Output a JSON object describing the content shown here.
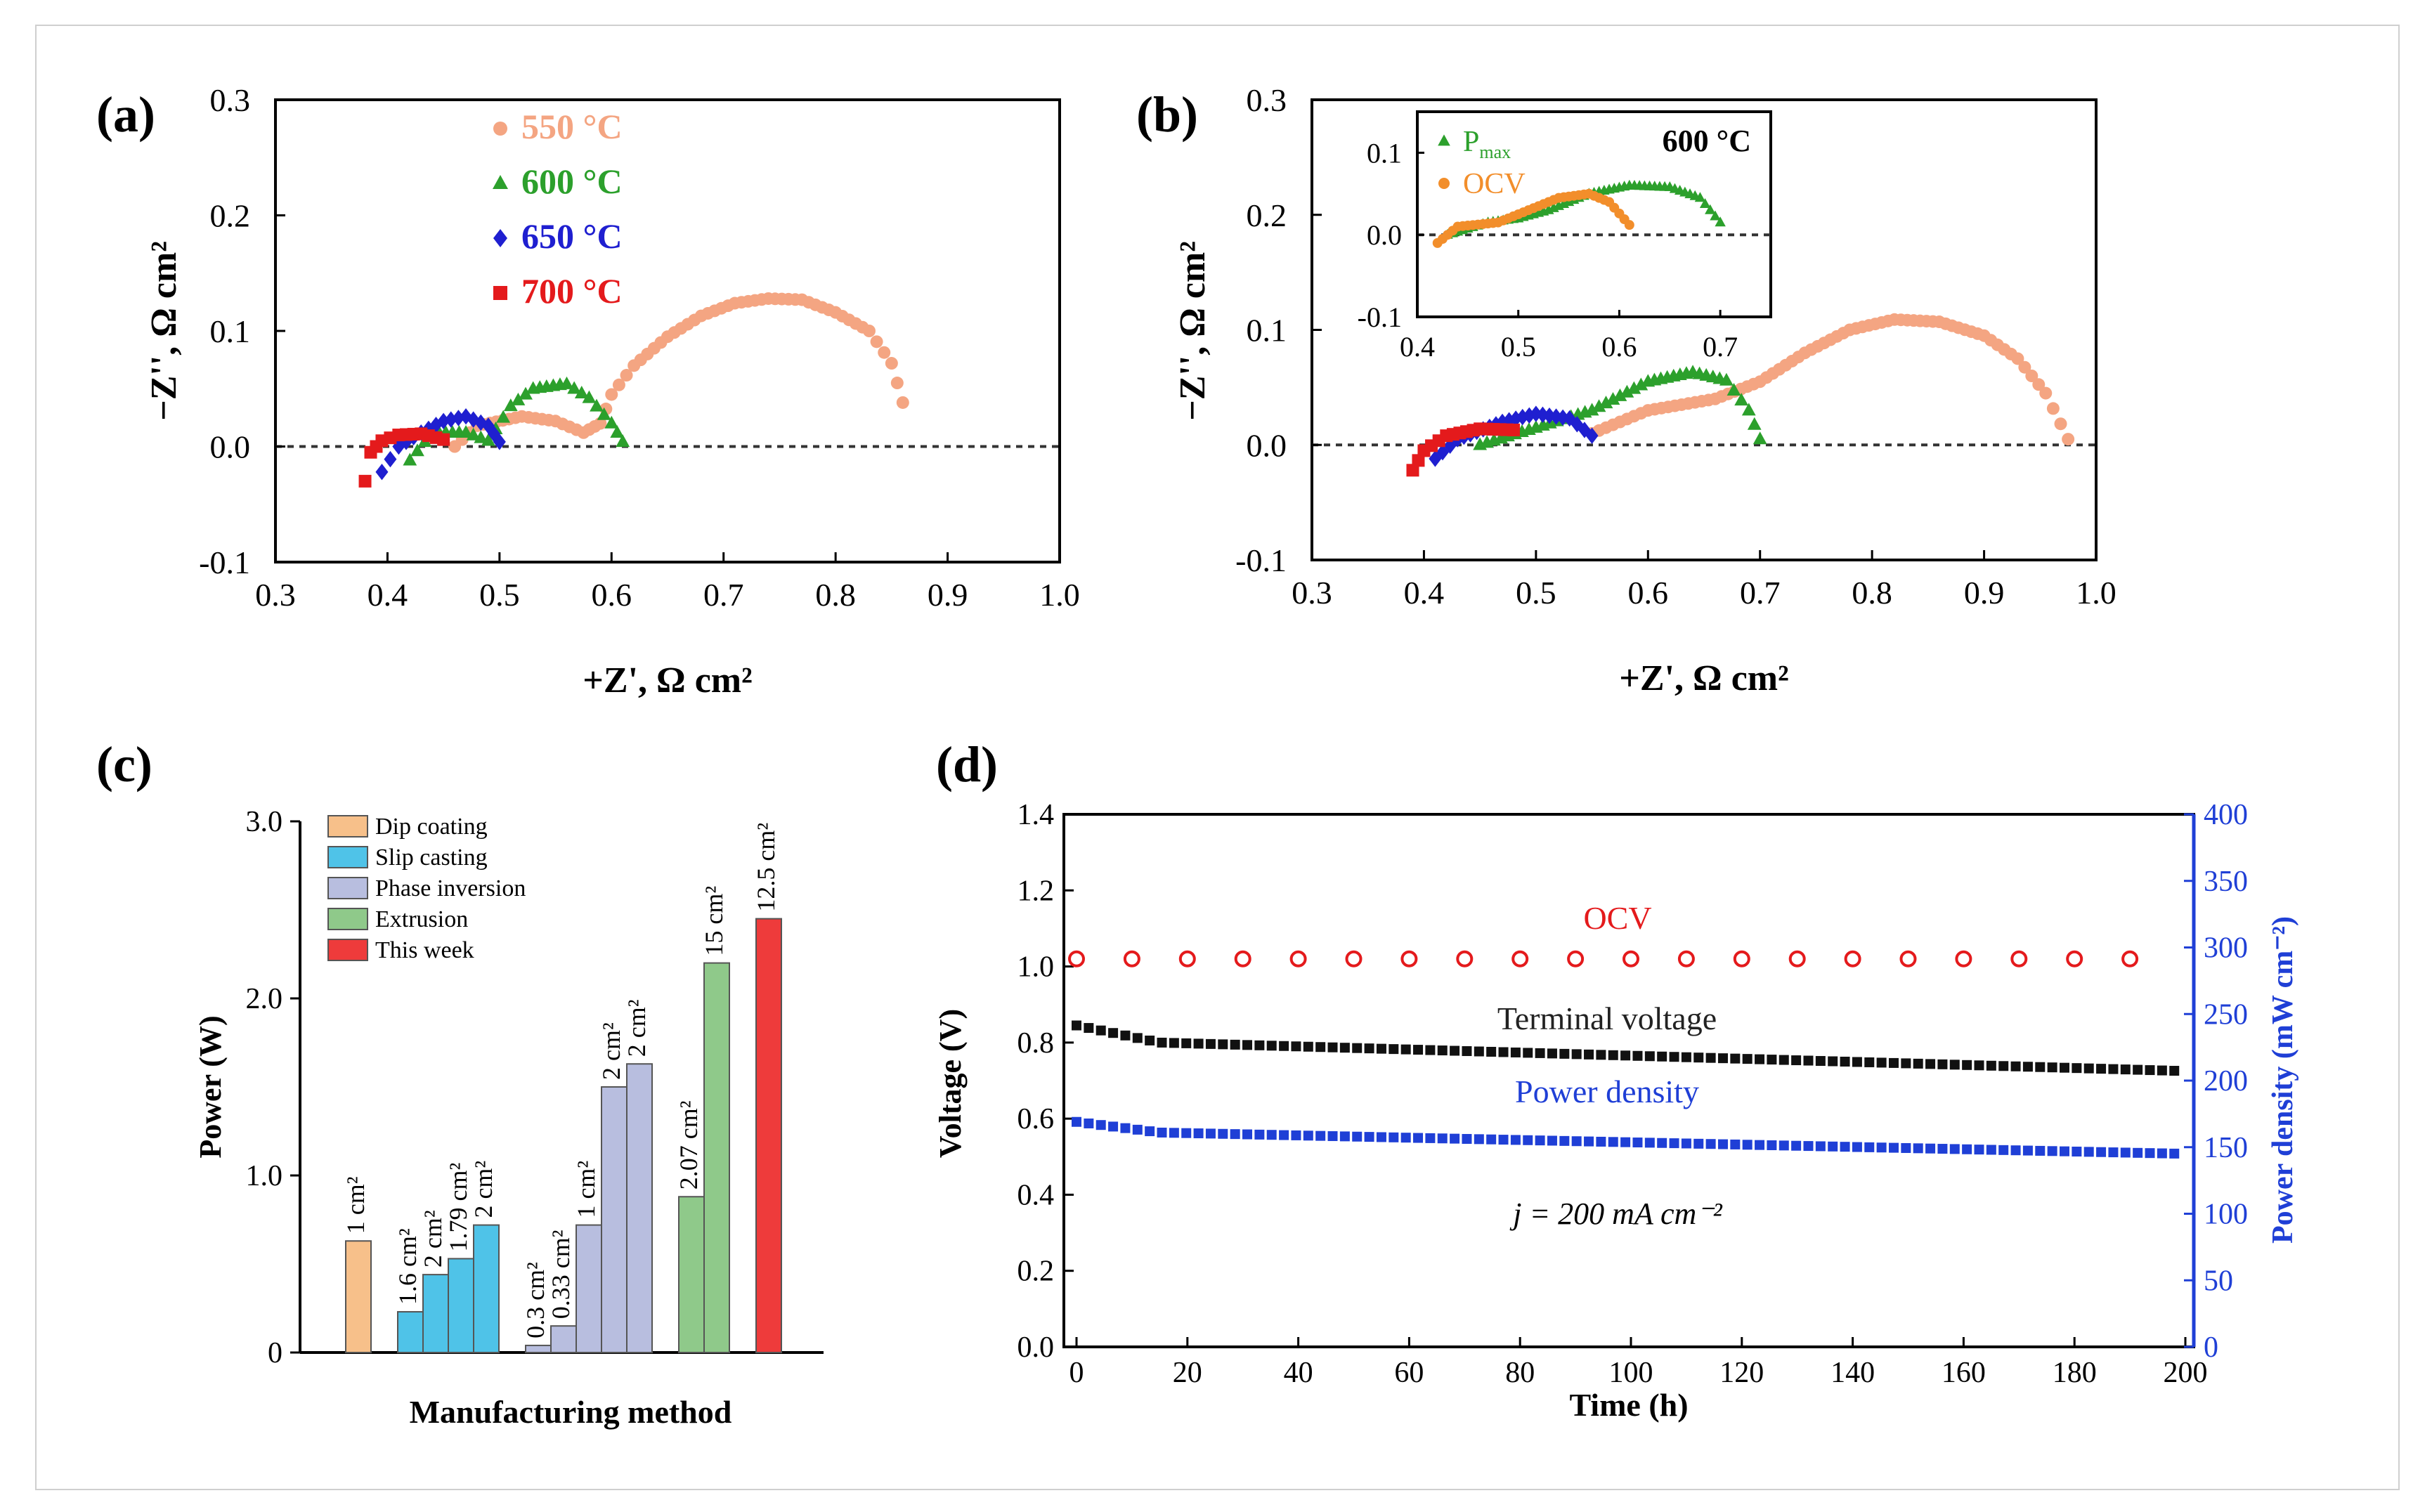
{
  "panels": {
    "a": {
      "label": "(a)",
      "chart_data": {
        "type": "scatter",
        "xlabel": "+Z', Ω cm²",
        "ylabel": "−Z'', Ω cm²",
        "xlim": [
          0.3,
          1.0
        ],
        "ylim": [
          -0.1,
          0.3
        ],
        "xticks": [
          "0.3",
          "0.4",
          "0.5",
          "0.6",
          "0.7",
          "0.8",
          "0.9",
          "1.0"
        ],
        "yticks": [
          "-0.1",
          "0.0",
          "0.1",
          "0.2",
          "0.3"
        ],
        "zero_line": true,
        "legend_position": "top-center",
        "series": [
          {
            "name": "550 °C",
            "color": "#f4a582",
            "marker": "circle",
            "points": [
              [
                0.46,
                0.0
              ],
              [
                0.48,
                0.018
              ],
              [
                0.52,
                0.026
              ],
              [
                0.55,
                0.022
              ],
              [
                0.575,
                0.012
              ],
              [
                0.59,
                0.02
              ],
              [
                0.6,
                0.045
              ],
              [
                0.62,
                0.07
              ],
              [
                0.65,
                0.095
              ],
              [
                0.68,
                0.113
              ],
              [
                0.71,
                0.124
              ],
              [
                0.74,
                0.128
              ],
              [
                0.77,
                0.127
              ],
              [
                0.8,
                0.116
              ],
              [
                0.83,
                0.1
              ],
              [
                0.85,
                0.072
              ],
              [
                0.86,
                0.038
              ]
            ]
          },
          {
            "name": "600 °C",
            "color": "#2ca02c",
            "marker": "triangle",
            "points": [
              [
                0.42,
                -0.012
              ],
              [
                0.44,
                0.012
              ],
              [
                0.47,
                0.012
              ],
              [
                0.49,
                0.005
              ],
              [
                0.51,
                0.035
              ],
              [
                0.53,
                0.05
              ],
              [
                0.56,
                0.054
              ],
              [
                0.58,
                0.042
              ],
              [
                0.6,
                0.02
              ],
              [
                0.61,
                0.004
              ]
            ]
          },
          {
            "name": "650 °C",
            "color": "#1f1fd0",
            "marker": "diamond",
            "points": [
              [
                0.395,
                -0.022
              ],
              [
                0.41,
                0.0
              ],
              [
                0.43,
                0.012
              ],
              [
                0.45,
                0.022
              ],
              [
                0.47,
                0.026
              ],
              [
                0.49,
                0.018
              ],
              [
                0.5,
                0.004
              ]
            ]
          },
          {
            "name": "700 °C",
            "color": "#e41a1c",
            "marker": "square",
            "points": [
              [
                0.38,
                -0.03
              ],
              [
                0.385,
                -0.005
              ],
              [
                0.395,
                0.005
              ],
              [
                0.41,
                0.01
              ],
              [
                0.43,
                0.011
              ],
              [
                0.45,
                0.006
              ]
            ]
          }
        ]
      }
    },
    "b": {
      "label": "(b)",
      "chart_data": {
        "type": "scatter",
        "xlabel": "+Z', Ω cm²",
        "ylabel": "−Z'', Ω cm²",
        "xlim": [
          0.3,
          1.0
        ],
        "ylim": [
          -0.1,
          0.3
        ],
        "xticks": [
          "0.3",
          "0.4",
          "0.5",
          "0.6",
          "0.7",
          "0.8",
          "0.9",
          "1.0"
        ],
        "yticks": [
          "-0.1",
          "0.0",
          "0.1",
          "0.2",
          "0.3"
        ],
        "zero_line": true,
        "series": [
          {
            "name": "550 °C",
            "color": "#f4a582",
            "marker": "circle",
            "points": [
              [
                0.55,
                0.01
              ],
              [
                0.6,
                0.03
              ],
              [
                0.66,
                0.04
              ],
              [
                0.7,
                0.055
              ],
              [
                0.74,
                0.08
              ],
              [
                0.78,
                0.1
              ],
              [
                0.82,
                0.109
              ],
              [
                0.86,
                0.107
              ],
              [
                0.9,
                0.095
              ],
              [
                0.93,
                0.075
              ],
              [
                0.955,
                0.045
              ],
              [
                0.975,
                0.005
              ]
            ]
          },
          {
            "name": "600 °C",
            "color": "#2ca02c",
            "marker": "triangle",
            "points": [
              [
                0.45,
                0.0
              ],
              [
                0.5,
                0.015
              ],
              [
                0.55,
                0.03
              ],
              [
                0.6,
                0.055
              ],
              [
                0.64,
                0.063
              ],
              [
                0.67,
                0.056
              ],
              [
                0.69,
                0.03
              ],
              [
                0.7,
                0.005
              ]
            ]
          },
          {
            "name": "650 °C",
            "color": "#1f1fd0",
            "marker": "diamond",
            "points": [
              [
                0.41,
                -0.012
              ],
              [
                0.43,
                0.005
              ],
              [
                0.47,
                0.02
              ],
              [
                0.5,
                0.027
              ],
              [
                0.53,
                0.023
              ],
              [
                0.55,
                0.008
              ]
            ]
          },
          {
            "name": "700 °C",
            "color": "#e41a1c",
            "marker": "square",
            "points": [
              [
                0.39,
                -0.022
              ],
              [
                0.4,
                -0.005
              ],
              [
                0.42,
                0.008
              ],
              [
                0.45,
                0.014
              ],
              [
                0.48,
                0.013
              ]
            ]
          }
        ]
      },
      "inset": {
        "title": "600 °C",
        "chart_data": {
          "type": "scatter",
          "xlim": [
            0.4,
            0.75
          ],
          "ylim": [
            -0.1,
            0.15
          ],
          "xticks": [
            "0.4",
            "0.5",
            "0.6",
            "0.7"
          ],
          "yticks": [
            "-0.1",
            "0.0",
            "0.1"
          ],
          "zero_line": true,
          "series": [
            {
              "name": "P",
              "name_subscript": "max",
              "color": "#2ca02c",
              "marker": "triangle",
              "points": [
                [
                  0.43,
                  0.0
                ],
                [
                  0.47,
                  0.015
                ],
                [
                  0.5,
                  0.02
                ],
                [
                  0.53,
                  0.03
                ],
                [
                  0.57,
                  0.05
                ],
                [
                  0.61,
                  0.06
                ],
                [
                  0.65,
                  0.058
                ],
                [
                  0.68,
                  0.045
                ],
                [
                  0.7,
                  0.015
                ]
              ]
            },
            {
              "name": "OCV",
              "color": "#f28e2b",
              "marker": "circle",
              "points": [
                [
                  0.42,
                  -0.01
                ],
                [
                  0.44,
                  0.01
                ],
                [
                  0.48,
                  0.015
                ],
                [
                  0.51,
                  0.03
                ],
                [
                  0.54,
                  0.045
                ],
                [
                  0.57,
                  0.05
                ],
                [
                  0.59,
                  0.04
                ],
                [
                  0.61,
                  0.012
                ]
              ]
            }
          ]
        }
      }
    },
    "c": {
      "label": "(c)",
      "chart_data": {
        "type": "bar",
        "xlabel": "Manufacturing method",
        "ylabel": "Power (W)",
        "ylim": [
          0,
          3.0
        ],
        "yticks": [
          "0",
          "1.0",
          "2.0",
          "3.0"
        ],
        "legend_position": "top-left",
        "groups": [
          {
            "name": "Dip coating",
            "color": "#f7c08a",
            "bars": [
              {
                "label": "1 cm²",
                "value": 0.63
              }
            ]
          },
          {
            "name": "Slip casting",
            "color": "#4fc3e8",
            "bars": [
              {
                "label": "1.6 cm²",
                "value": 0.23
              },
              {
                "label": "2 cm²",
                "value": 0.44
              },
              {
                "label": "1.79 cm²",
                "value": 0.53
              },
              {
                "label": "2 cm²",
                "value": 0.72
              }
            ]
          },
          {
            "name": "Phase inversion",
            "color": "#b8bedf",
            "bars": [
              {
                "label": "0.3 cm²",
                "value": 0.04
              },
              {
                "label": "0.33 cm²",
                "value": 0.15
              },
              {
                "label": "1 cm²",
                "value": 0.72
              },
              {
                "label": "2 cm²",
                "value": 1.5
              },
              {
                "label": "2 cm²",
                "value": 1.63
              }
            ]
          },
          {
            "name": "Extrusion",
            "color": "#8fc98a",
            "bars": [
              {
                "label": "2.07 cm²",
                "value": 0.88
              },
              {
                "label": "15 cm²",
                "value": 2.2
              }
            ]
          },
          {
            "name": "This week",
            "color": "#ee3b3b",
            "bars": [
              {
                "label": "12.5 cm²",
                "value": 2.45
              }
            ]
          }
        ]
      }
    },
    "d": {
      "label": "(d)",
      "chart_data": {
        "type": "scatter",
        "xlabel": "Time (h)",
        "ylabel": "Voltage (V)",
        "y2label": "Power density (mW cm⁻²)",
        "xlim": [
          0,
          200
        ],
        "ylim": [
          0,
          1.4
        ],
        "y2lim": [
          0,
          400
        ],
        "xticks": [
          "0",
          "20",
          "40",
          "60",
          "80",
          "100",
          "120",
          "140",
          "160",
          "180",
          "200"
        ],
        "yticks": [
          "0.0",
          "0.2",
          "0.4",
          "0.6",
          "0.8",
          "1.0",
          "1.2",
          "1.4"
        ],
        "y2ticks": [
          "0",
          "50",
          "100",
          "150",
          "200",
          "250",
          "300",
          "350",
          "400"
        ],
        "annotations": {
          "ocv": "OCV",
          "terminal": "Terminal voltage",
          "power": "Power density",
          "current": "j = 200 mA cm⁻²"
        },
        "series": [
          {
            "name": "OCV",
            "axis": "left",
            "color": "#e41a1c",
            "marker": "open-circle",
            "x": [
              0,
              10,
              20,
              30,
              40,
              50,
              60,
              70,
              80,
              90,
              100,
              110,
              120,
              130,
              140,
              150,
              160,
              170,
              180,
              190
            ],
            "y": [
              1.02,
              1.02,
              1.02,
              1.02,
              1.02,
              1.02,
              1.02,
              1.02,
              1.02,
              1.02,
              1.02,
              1.02,
              1.02,
              1.02,
              1.02,
              1.02,
              1.02,
              1.02,
              1.02,
              1.02
            ]
          },
          {
            "name": "Terminal voltage",
            "axis": "left",
            "color": "#111111",
            "marker": "square",
            "start": 0.845,
            "knee": 0.8,
            "end": 0.725
          },
          {
            "name": "Power density",
            "axis": "right",
            "color": "#1f3fd6",
            "marker": "square",
            "start": 169,
            "knee": 161,
            "end": 145
          }
        ]
      }
    }
  }
}
